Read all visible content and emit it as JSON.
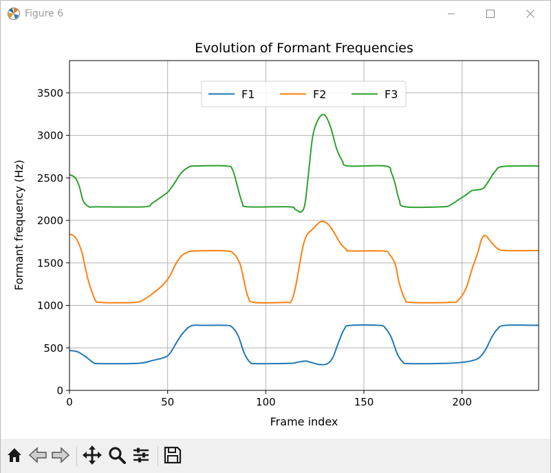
{
  "window": {
    "title": "Figure 6",
    "icons": {
      "app": "matplotlib-icon",
      "minimize": "minimize-icon",
      "maximize": "maximize-icon",
      "close": "close-icon"
    }
  },
  "toolbar": {
    "buttons": [
      "home-icon",
      "back-arrow-icon",
      "forward-arrow-icon",
      "pan-icon",
      "zoom-icon",
      "configure-subplots-icon",
      "save-icon"
    ]
  },
  "chart_data": {
    "type": "line",
    "title": "Evolution of Formant Frequencies",
    "xlabel": "Frame index",
    "ylabel": "Formant frequency (Hz)",
    "xlim": [
      0,
      239
    ],
    "ylim": [
      0,
      3880
    ],
    "xticks": [
      0,
      50,
      100,
      150,
      200
    ],
    "yticks": [
      0,
      500,
      1000,
      1500,
      2000,
      2500,
      3000,
      3500
    ],
    "grid": true,
    "legend": {
      "placement": "upper center",
      "ncol": 3
    },
    "series": [
      {
        "name": "F1",
        "color": "#1f77b4",
        "points": [
          [
            0,
            470
          ],
          [
            4,
            455
          ],
          [
            8,
            400
          ],
          [
            12,
            330
          ],
          [
            15,
            315
          ],
          [
            35,
            318
          ],
          [
            42,
            350
          ],
          [
            48,
            385
          ],
          [
            51,
            430
          ],
          [
            55,
            580
          ],
          [
            58,
            680
          ],
          [
            62,
            760
          ],
          [
            68,
            765
          ],
          [
            80,
            765
          ],
          [
            83,
            740
          ],
          [
            86,
            640
          ],
          [
            89,
            440
          ],
          [
            92,
            330
          ],
          [
            95,
            315
          ],
          [
            112,
            318
          ],
          [
            116,
            330
          ],
          [
            120,
            345
          ],
          [
            123,
            330
          ],
          [
            127,
            305
          ],
          [
            131,
            310
          ],
          [
            134,
            380
          ],
          [
            137,
            560
          ],
          [
            140,
            720
          ],
          [
            143,
            765
          ],
          [
            158,
            765
          ],
          [
            161,
            730
          ],
          [
            164,
            620
          ],
          [
            167,
            430
          ],
          [
            170,
            330
          ],
          [
            173,
            315
          ],
          [
            192,
            318
          ],
          [
            200,
            330
          ],
          [
            206,
            355
          ],
          [
            209,
            390
          ],
          [
            212,
            480
          ],
          [
            215,
            620
          ],
          [
            218,
            720
          ],
          [
            222,
            765
          ],
          [
            239,
            765
          ]
        ]
      },
      {
        "name": "F2",
        "color": "#ff7f0e",
        "points": [
          [
            0,
            1840
          ],
          [
            3,
            1800
          ],
          [
            6,
            1650
          ],
          [
            8,
            1450
          ],
          [
            10,
            1260
          ],
          [
            13,
            1070
          ],
          [
            16,
            1035
          ],
          [
            33,
            1035
          ],
          [
            38,
            1070
          ],
          [
            43,
            1150
          ],
          [
            48,
            1250
          ],
          [
            51,
            1340
          ],
          [
            54,
            1480
          ],
          [
            57,
            1580
          ],
          [
            60,
            1625
          ],
          [
            64,
            1640
          ],
          [
            80,
            1640
          ],
          [
            84,
            1600
          ],
          [
            87,
            1480
          ],
          [
            89,
            1280
          ],
          [
            91,
            1100
          ],
          [
            94,
            1035
          ],
          [
            110,
            1035
          ],
          [
            113,
            1050
          ],
          [
            115,
            1200
          ],
          [
            117,
            1450
          ],
          [
            119,
            1700
          ],
          [
            121,
            1830
          ],
          [
            124,
            1900
          ],
          [
            127,
            1970
          ],
          [
            129,
            1990
          ],
          [
            132,
            1950
          ],
          [
            135,
            1850
          ],
          [
            138,
            1730
          ],
          [
            141,
            1660
          ],
          [
            143,
            1640
          ],
          [
            160,
            1640
          ],
          [
            163,
            1600
          ],
          [
            166,
            1480
          ],
          [
            168,
            1260
          ],
          [
            171,
            1070
          ],
          [
            174,
            1035
          ],
          [
            194,
            1035
          ],
          [
            198,
            1060
          ],
          [
            202,
            1200
          ],
          [
            205,
            1420
          ],
          [
            208,
            1620
          ],
          [
            210,
            1780
          ],
          [
            212,
            1820
          ],
          [
            215,
            1740
          ],
          [
            218,
            1670
          ],
          [
            222,
            1645
          ],
          [
            239,
            1645
          ]
        ]
      },
      {
        "name": "F3",
        "color": "#2ca02c",
        "points": [
          [
            0,
            2540
          ],
          [
            3,
            2500
          ],
          [
            5,
            2400
          ],
          [
            7,
            2230
          ],
          [
            10,
            2160
          ],
          [
            14,
            2160
          ],
          [
            38,
            2160
          ],
          [
            42,
            2200
          ],
          [
            47,
            2280
          ],
          [
            50,
            2330
          ],
          [
            53,
            2420
          ],
          [
            57,
            2560
          ],
          [
            61,
            2630
          ],
          [
            64,
            2640
          ],
          [
            80,
            2640
          ],
          [
            83,
            2600
          ],
          [
            85,
            2450
          ],
          [
            88,
            2210
          ],
          [
            91,
            2160
          ],
          [
            112,
            2160
          ],
          [
            115,
            2130
          ],
          [
            118,
            2100
          ],
          [
            120,
            2200
          ],
          [
            122,
            2600
          ],
          [
            124,
            3000
          ],
          [
            127,
            3200
          ],
          [
            130,
            3240
          ],
          [
            133,
            3100
          ],
          [
            136,
            2850
          ],
          [
            139,
            2700
          ],
          [
            142,
            2640
          ],
          [
            161,
            2640
          ],
          [
            164,
            2560
          ],
          [
            166,
            2420
          ],
          [
            168,
            2240
          ],
          [
            171,
            2160
          ],
          [
            190,
            2160
          ],
          [
            194,
            2180
          ],
          [
            198,
            2240
          ],
          [
            202,
            2300
          ],
          [
            205,
            2350
          ],
          [
            208,
            2360
          ],
          [
            211,
            2380
          ],
          [
            214,
            2480
          ],
          [
            217,
            2580
          ],
          [
            221,
            2635
          ],
          [
            239,
            2640
          ]
        ]
      }
    ]
  }
}
